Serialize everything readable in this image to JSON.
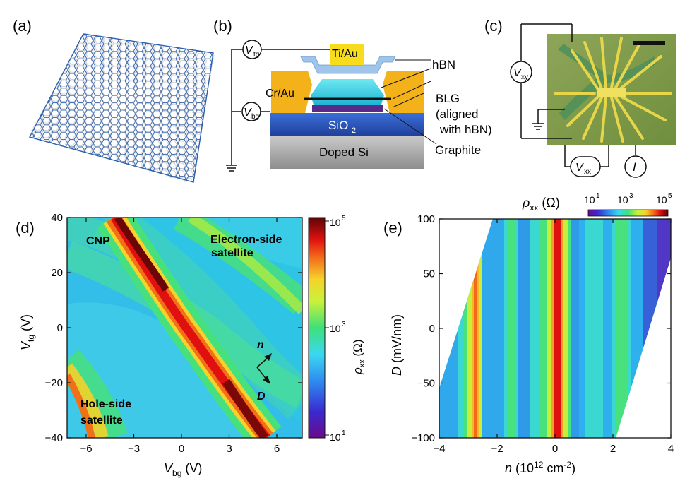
{
  "panels": {
    "a": {
      "label": "(a)"
    },
    "b": {
      "label": "(b)",
      "vtg": {
        "main": "V",
        "sub": "tg"
      },
      "vbg": {
        "main": "V",
        "sub": "bg"
      },
      "tiau": "Ti/Au",
      "crau": "Cr/Au",
      "sio2": {
        "main": "SiO",
        "sub": "2"
      },
      "doped_si": "Doped Si",
      "hbn": "hBN",
      "blg": "BLG",
      "aligned_line1": "(aligned",
      "aligned_line2": "with hBN)",
      "graphite": "Graphite"
    },
    "c": {
      "label": "(c)",
      "vxy": {
        "main": "V",
        "sub": "xy"
      },
      "vxx": {
        "main": "V",
        "sub": "xx"
      },
      "current": "I"
    },
    "d": {
      "label": "(d)",
      "cnp": "CNP",
      "electron_line1": "Electron-side",
      "electron_line2": "satellite",
      "hole_line1": "Hole-side",
      "hole_line2": "satellite",
      "arrow_n": "n",
      "arrow_d": "D",
      "colorbar_label": {
        "main": "ρ",
        "sub": "xx",
        "unit": " (Ω)"
      },
      "colorbar_ticks": [
        {
          "base": "10",
          "exp": "5"
        },
        {
          "base": "10",
          "exp": "3"
        },
        {
          "base": "10",
          "exp": "1"
        }
      ]
    },
    "e": {
      "label": "(e)",
      "colorbar_label": {
        "main": "ρ",
        "sub": "xx",
        "unit": " (Ω)"
      },
      "colorbar_ticks": [
        {
          "base": "10",
          "exp": "1"
        },
        {
          "base": "10",
          "exp": "3"
        },
        {
          "base": "10",
          "exp": "5"
        }
      ]
    }
  },
  "chart_data": [
    {
      "panel": "d",
      "type": "heatmap",
      "title": "",
      "xlabel": {
        "main": "V",
        "sub": "bg",
        "unit": " (V)"
      },
      "ylabel": {
        "main": "V",
        "sub": "tg",
        "unit": " (V)"
      },
      "xlim": [
        -7.2,
        7.6
      ],
      "ylim": [
        -40,
        40
      ],
      "xticks": [
        -6,
        -3,
        0,
        3,
        6
      ],
      "yticks": [
        -40,
        -20,
        0,
        20,
        40
      ],
      "colorbar": {
        "quantity": "rho_xx",
        "unit": "Ω",
        "scale": "log",
        "range": [
          10.0,
          100000.0
        ]
      },
      "features": [
        {
          "name": "CNP",
          "description": "charge neutrality line",
          "points": [
            [
              -4.3,
              40
            ],
            [
              0,
              0
            ],
            [
              5.2,
              -40
            ]
          ]
        },
        {
          "name": "Electron-side satellite",
          "description": "resistive ridge, upper right",
          "points": [
            [
              -1.0,
              40
            ],
            [
              7.6,
              -16
            ]
          ]
        },
        {
          "name": "Hole-side satellite",
          "description": "resistive ridge, lower left",
          "points": [
            [
              -7.2,
              -14
            ],
            [
              -3.4,
              -40
            ]
          ]
        }
      ]
    },
    {
      "panel": "e",
      "type": "heatmap",
      "title": "",
      "xlabel": {
        "main": "n",
        "unit": " (10",
        "exp": "12",
        "unit2": " cm",
        "exp2": "-2",
        "close": ")"
      },
      "ylabel": {
        "main": "D",
        "unit": " (mV/nm)"
      },
      "xlim": [
        -4,
        4
      ],
      "ylim": [
        -100,
        100
      ],
      "xticks": [
        -4,
        -2,
        0,
        2,
        4
      ],
      "yticks": [
        -100,
        -50,
        0,
        50,
        100
      ],
      "colorbar": {
        "quantity": "rho_xx",
        "unit": "Ω",
        "scale": "log",
        "range": [
          10.0,
          100000.0
        ]
      },
      "features": [
        {
          "name": "CNP",
          "n": 0.0,
          "level": "1e5"
        },
        {
          "name": "Hole-side satellite",
          "n": -2.5,
          "level": "1e4"
        },
        {
          "name": "Electron-side satellite",
          "n": 2.5,
          "level": "1e3"
        }
      ]
    }
  ]
}
